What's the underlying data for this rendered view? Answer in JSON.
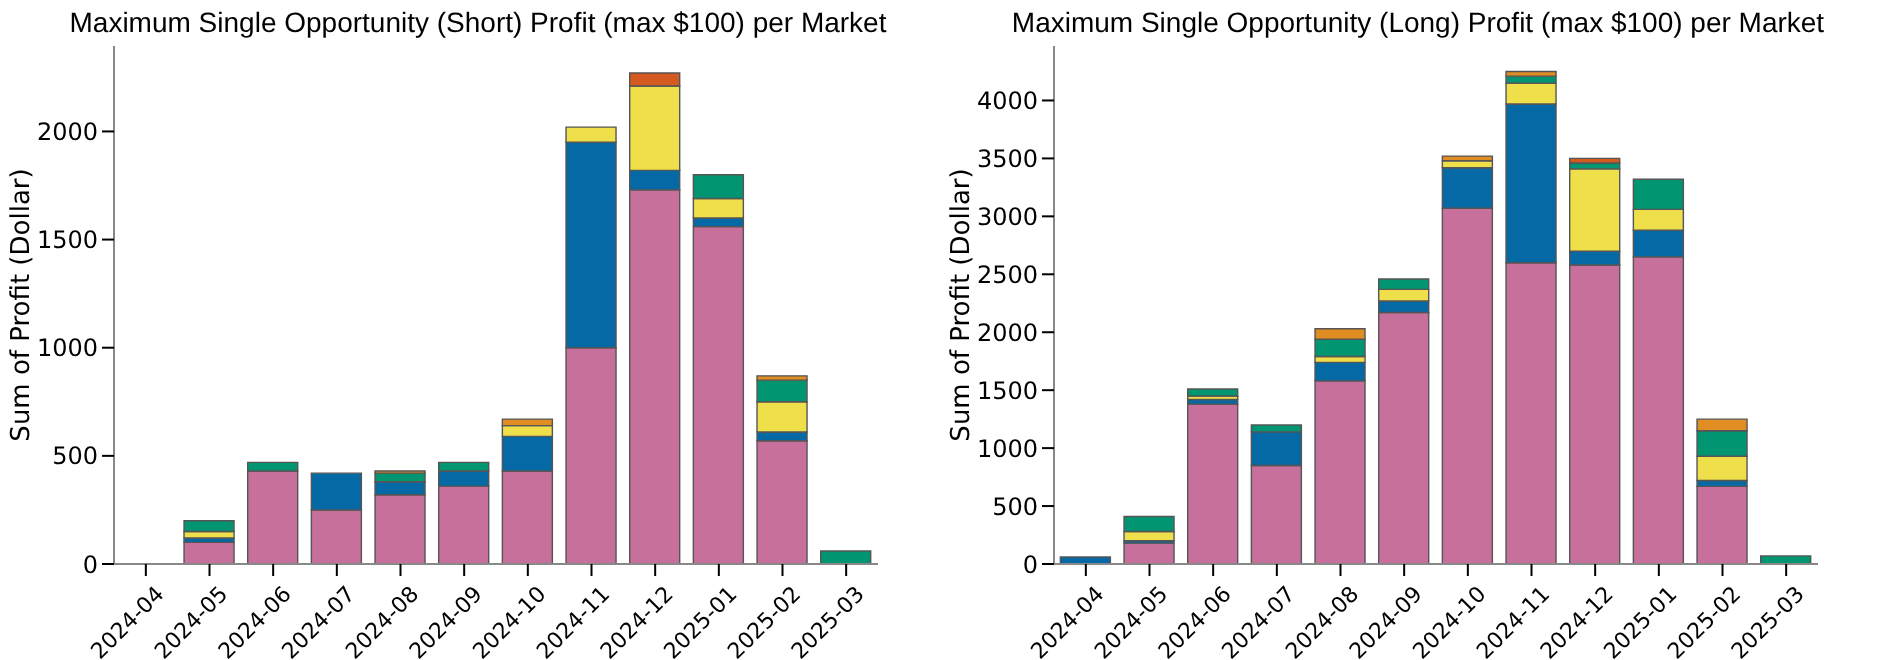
{
  "chart_data": [
    {
      "type": "bar",
      "stacked": true,
      "title": "Maximum Single Opportunity (Short) Profit (max $100) per Market",
      "ylabel": "Sum of Profit (Dollar)",
      "categories": [
        "2024-04",
        "2024-05",
        "2024-06",
        "2024-07",
        "2024-08",
        "2024-09",
        "2024-10",
        "2024-11",
        "2024-12",
        "2025-01",
        "2025-02",
        "2025-03"
      ],
      "ylim": [
        0,
        2395
      ],
      "yticks": [
        0,
        500,
        1000,
        1500,
        2000
      ],
      "grid": false,
      "legend": false,
      "series": [
        {
          "color": "#c8709c",
          "values": [
            null,
            100,
            430,
            250,
            320,
            360,
            430,
            1000,
            1730,
            1560,
            570,
            null
          ]
        },
        {
          "color": "#0569a6",
          "values": [
            null,
            20,
            null,
            170,
            60,
            70,
            160,
            950,
            90,
            40,
            40,
            null
          ]
        },
        {
          "color": "#efdf4b",
          "values": [
            null,
            30,
            null,
            null,
            null,
            null,
            50,
            70,
            390,
            90,
            140,
            null
          ]
        },
        {
          "color": "#029572",
          "values": [
            null,
            50,
            40,
            null,
            40,
            40,
            null,
            null,
            null,
            110,
            100,
            60
          ]
        },
        {
          "color": "#e08e23",
          "values": [
            null,
            null,
            null,
            null,
            10,
            null,
            30,
            null,
            null,
            null,
            20,
            null
          ]
        },
        {
          "color": "#d55a1f",
          "values": [
            null,
            null,
            null,
            null,
            null,
            null,
            null,
            null,
            60,
            null,
            null,
            null
          ]
        }
      ]
    },
    {
      "type": "bar",
      "stacked": true,
      "title": "Maximum Single Opportunity (Long) Profit (max $100) per Market",
      "ylabel": "Sum of Profit (Dollar)",
      "categories": [
        "2024-04",
        "2024-05",
        "2024-06",
        "2024-07",
        "2024-08",
        "2024-09",
        "2024-10",
        "2024-11",
        "2024-12",
        "2025-01",
        "2025-02",
        "2025-03"
      ],
      "ylim": [
        0,
        4470
      ],
      "yticks": [
        0,
        500,
        1000,
        1500,
        2000,
        2500,
        3000,
        3500,
        4000
      ],
      "grid": false,
      "legend": false,
      "series": [
        {
          "color": "#c8709c",
          "values": [
            null,
            180,
            1380,
            850,
            1580,
            2170,
            3070,
            2600,
            2580,
            2650,
            670,
            null
          ]
        },
        {
          "color": "#0569a6",
          "values": [
            60,
            20,
            40,
            290,
            160,
            100,
            350,
            1370,
            120,
            230,
            50,
            null
          ]
        },
        {
          "color": "#efdf4b",
          "values": [
            null,
            80,
            30,
            null,
            50,
            100,
            60,
            180,
            710,
            180,
            210,
            null
          ]
        },
        {
          "color": "#029572",
          "values": [
            null,
            130,
            60,
            60,
            150,
            90,
            null,
            60,
            50,
            260,
            220,
            70
          ]
        },
        {
          "color": "#e08e23",
          "values": [
            null,
            null,
            null,
            null,
            90,
            null,
            40,
            40,
            null,
            null,
            100,
            null
          ]
        },
        {
          "color": "#d55a1f",
          "values": [
            null,
            null,
            null,
            null,
            null,
            null,
            null,
            null,
            40,
            null,
            null,
            null
          ]
        }
      ]
    }
  ]
}
